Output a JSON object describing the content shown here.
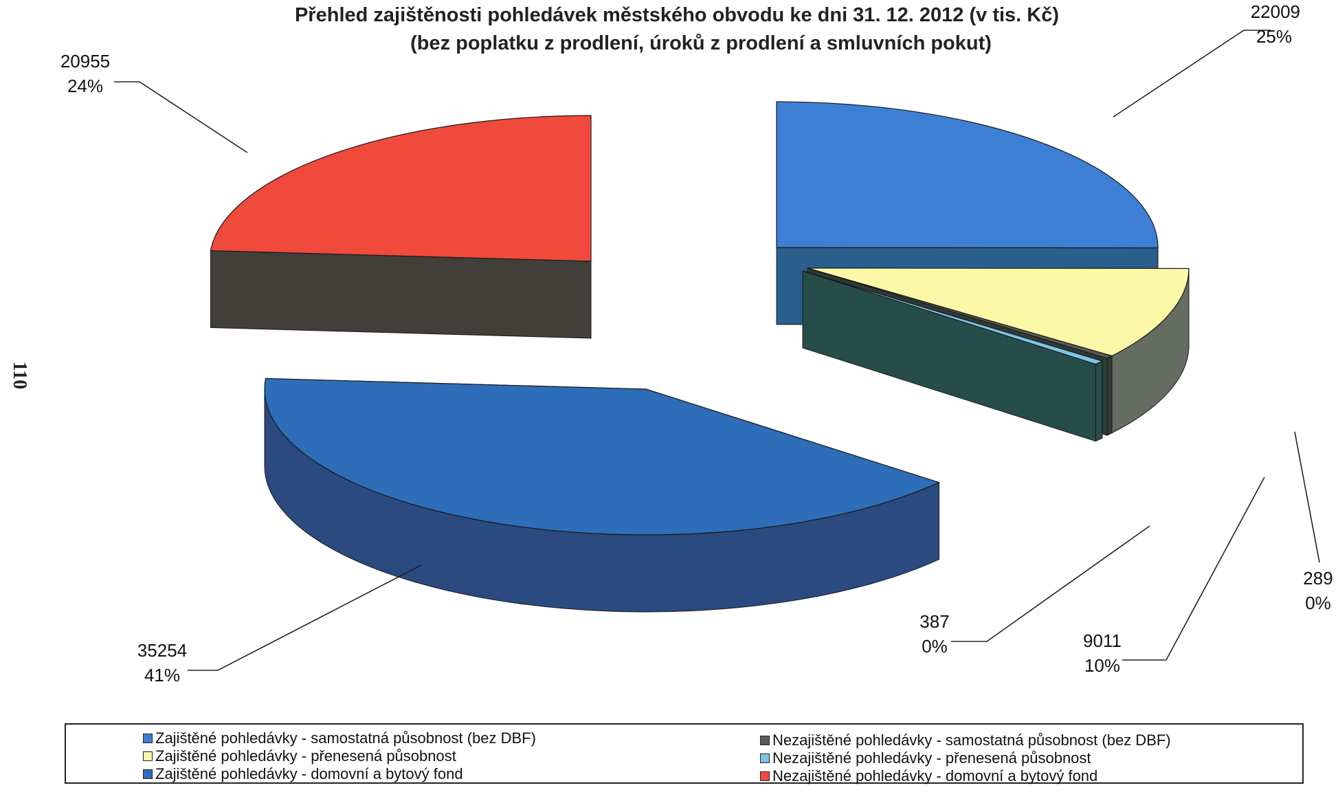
{
  "page_side_number": "110",
  "chart_data": {
    "type": "pie",
    "title": "Přehled zajištěnosti pohledávek městského obvodu ke dni 31. 12. 2012 (v tis. Kč)",
    "subtitle": "(bez poplatku z prodlení, úroků z prodlení a smluvních pokut)",
    "legend_position": "bottom",
    "slices": [
      {
        "name": "Zajištěné pohledávky - samostatná působnost (bez DBF)",
        "value": 22009,
        "value_label": "22009",
        "pct_label": "25%",
        "color": "#3d7fd4",
        "side": "#2a5e8c"
      },
      {
        "name": "Zajištěné pohledávky - přenesená působnost",
        "value": 9011,
        "value_label": "9011",
        "pct_label": "10%",
        "color": "#fbf8a8",
        "side": "#656d62"
      },
      {
        "name": "Nezajištěné pohledávky - samostatná působnost (bez DBF)",
        "value": 289,
        "value_label": "289",
        "pct_label": "0%",
        "color": "#5c5a57",
        "side": "#2d3b34"
      },
      {
        "name": "Nezajištěné pohledávky - přenesená působnost",
        "value": 387,
        "value_label": "387",
        "pct_label": "0%",
        "color": "#7cc4e6",
        "side": "#274d4a"
      },
      {
        "name": "Zajištěné pohledávky - domovní a bytový fond",
        "value": 35254,
        "value_label": "35254",
        "pct_label": "41%",
        "color": "#2e6db8",
        "side": "#2a4a80"
      },
      {
        "name": "Nezajištěné pohledávky - domovní a bytový fond",
        "value": 20955,
        "value_label": "20955",
        "pct_label": "24%",
        "color": "#ef4a3c",
        "side": "#423e3a"
      }
    ]
  }
}
